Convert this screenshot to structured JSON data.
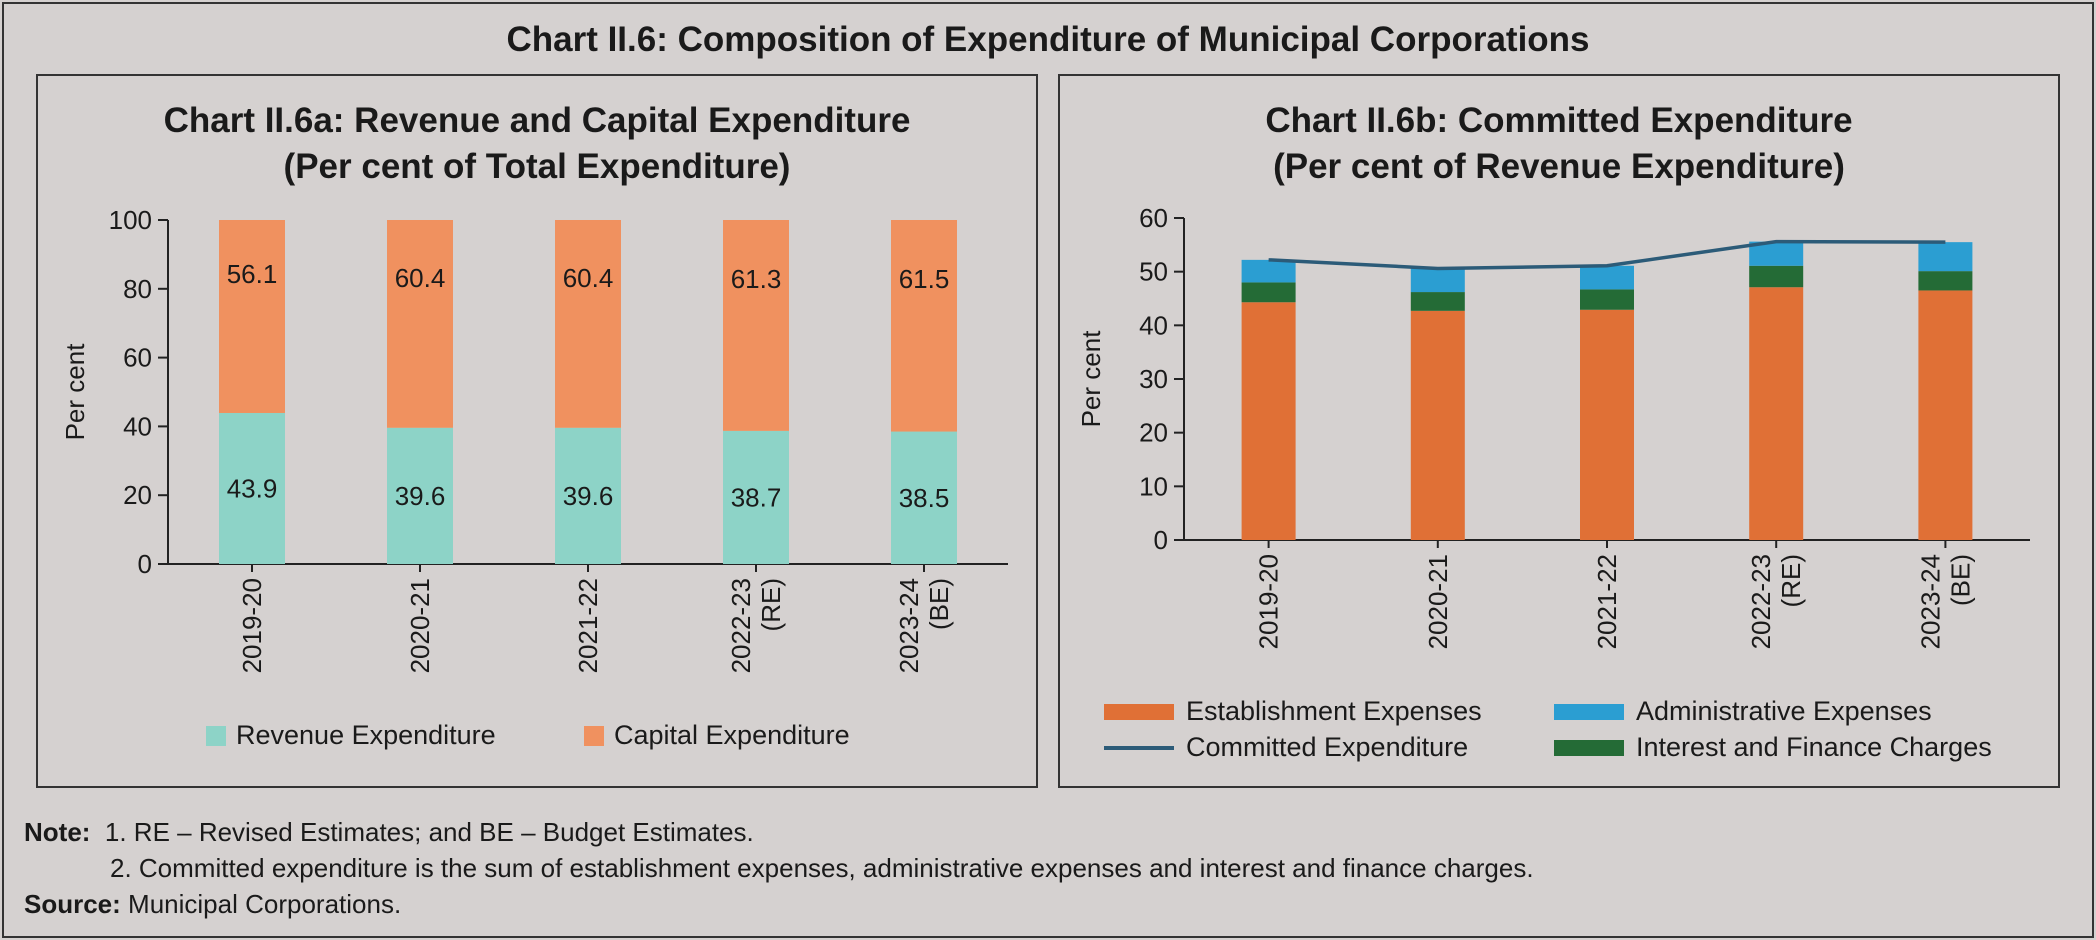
{
  "title": "Chart II.6: Composition of Expenditure of Municipal Corporations",
  "colors": {
    "revenue": "#8dd3c7",
    "capital": "#f0915f",
    "establishment": "#e07036",
    "administrative": "#2b9ed2",
    "interest": "#246b36",
    "committed_line": "#2c5b78"
  },
  "chart_data": [
    {
      "type": "bar",
      "stacked": true,
      "title_line1": "Chart II.6a: Revenue and Capital Expenditure",
      "title_line2": "(Per cent of Total Expenditure)",
      "ylabel": "Per cent",
      "ylim": [
        0,
        100
      ],
      "yticks": [
        "0",
        "20",
        "40",
        "60",
        "80",
        "100"
      ],
      "categories": [
        [
          "2019-20"
        ],
        [
          "2020-21"
        ],
        [
          "2021-22"
        ],
        [
          "2022-23",
          "(RE)"
        ],
        [
          "2023-24",
          "(BE)"
        ]
      ],
      "series": [
        {
          "name": "Revenue Expenditure",
          "values": [
            43.9,
            39.6,
            39.6,
            38.7,
            38.5
          ],
          "labels": [
            "43.9",
            "39.6",
            "39.6",
            "38.7",
            "38.5"
          ]
        },
        {
          "name": "Capital Expenditure",
          "values": [
            56.1,
            60.4,
            60.4,
            61.3,
            61.5
          ],
          "labels": [
            "56.1",
            "60.4",
            "60.4",
            "61.3",
            "61.5"
          ]
        }
      ],
      "legend": "bottom"
    },
    {
      "type": "bar",
      "stacked": true,
      "title_line1": "Chart II.6b: Committed Expenditure",
      "title_line2": "(Per cent of Revenue Expenditure)",
      "ylabel": "Per cent",
      "ylim": [
        0,
        60
      ],
      "yticks": [
        "0",
        "10",
        "20",
        "30",
        "40",
        "50",
        "60"
      ],
      "categories": [
        [
          "2019-20"
        ],
        [
          "2020-21"
        ],
        [
          "2021-22"
        ],
        [
          "2022-23",
          "(RE)"
        ],
        [
          "2023-24",
          "(BE)"
        ]
      ],
      "series": [
        {
          "name": "Establishment Expenses",
          "values": [
            44.3,
            42.7,
            42.9,
            47.1,
            46.5
          ]
        },
        {
          "name": "Interest and Finance Charges",
          "values": [
            3.7,
            3.5,
            3.8,
            4.0,
            3.6
          ]
        },
        {
          "name": "Administrative Expenses",
          "values": [
            4.2,
            4.4,
            4.4,
            4.5,
            5.4
          ]
        }
      ],
      "line_series": {
        "name": "Committed Expenditure",
        "values": [
          52.2,
          50.6,
          51.1,
          55.6,
          55.5
        ]
      },
      "legend": "bottom"
    }
  ],
  "notes": {
    "note_label": "Note:",
    "note1": "1. RE – Revised Estimates; and BE – Budget Estimates.",
    "note2": "2. Committed expenditure is the sum of establishment expenses, administrative expenses and interest and finance charges.",
    "source_label": "Source:",
    "source_text": "Municipal Corporations."
  }
}
